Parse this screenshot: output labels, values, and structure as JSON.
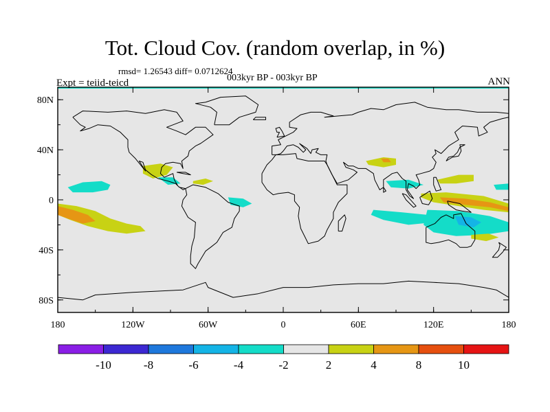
{
  "title": "Tot. Cloud Cov. (random overlap, in %)",
  "stats_line": "rmsd= 1.26543 diff= 0.0712624",
  "experiment_label": "Expt = teiid-teicd",
  "period_label": "003kyr BP - 003kyr BP",
  "season_label": "ANN",
  "colors": {
    "ocean_land_background": "#e6e6e6",
    "coastline": "#000000",
    "frame": "#000000"
  },
  "chart_data": {
    "type": "heatmap",
    "projection": "cylindrical-equidistant",
    "variable": "Total cloud cover difference (random overlap)",
    "units": "%",
    "xlim": [
      -180,
      180
    ],
    "ylim": [
      -90,
      90
    ],
    "x_ticks": [
      {
        "value": -180,
        "label": "180"
      },
      {
        "value": -120,
        "label": "120W"
      },
      {
        "value": -60,
        "label": "60W"
      },
      {
        "value": 0,
        "label": "0"
      },
      {
        "value": 60,
        "label": "60E"
      },
      {
        "value": 120,
        "label": "120E"
      },
      {
        "value": 180,
        "label": "180"
      }
    ],
    "y_ticks": [
      {
        "value": 80,
        "label": "80N"
      },
      {
        "value": 40,
        "label": "40N"
      },
      {
        "value": 0,
        "label": "0"
      },
      {
        "value": -40,
        "label": "40S"
      },
      {
        "value": -80,
        "label": "80S"
      }
    ],
    "colorbar": {
      "bins": [
        {
          "min": null,
          "max": -10,
          "color": "#8a1ee6"
        },
        {
          "min": -10,
          "max": -8,
          "color": "#3c28d2"
        },
        {
          "min": -8,
          "max": -6,
          "color": "#1e78dc"
        },
        {
          "min": -6,
          "max": -4,
          "color": "#14b4e6"
        },
        {
          "min": -4,
          "max": -2,
          "color": "#14dcc8"
        },
        {
          "min": -2,
          "max": 2,
          "color": "#e6e6e6"
        },
        {
          "min": 2,
          "max": 4,
          "color": "#c8d214"
        },
        {
          "min": 4,
          "max": 8,
          "color": "#e69614"
        },
        {
          "min": 8,
          "max": 10,
          "color": "#e6500f"
        },
        {
          "min": 10,
          "max": null,
          "color": "#e61414"
        }
      ],
      "tick_labels": [
        "-10",
        "-8",
        "-6",
        "-4",
        "-2",
        "2",
        "4",
        "8",
        "10"
      ]
    },
    "regions": [
      {
        "name": "central-pacific-positive",
        "level": "2 to 4",
        "color": "#c8d214",
        "points": [
          [
            -180,
            -3
          ],
          [
            -165,
            -5
          ],
          [
            -150,
            -9
          ],
          [
            -138,
            -15
          ],
          [
            -125,
            -19
          ],
          [
            -114,
            -21
          ],
          [
            -110,
            -25
          ],
          [
            -125,
            -27
          ],
          [
            -140,
            -25
          ],
          [
            -156,
            -21
          ],
          [
            -170,
            -16
          ],
          [
            -180,
            -12
          ]
        ]
      },
      {
        "name": "central-pacific-core",
        "level": "4 to 8",
        "color": "#e69614",
        "points": [
          [
            -180,
            -5
          ],
          [
            -168,
            -8
          ],
          [
            -156,
            -12
          ],
          [
            -150,
            -17
          ],
          [
            -160,
            -19
          ],
          [
            -172,
            -15
          ],
          [
            -180,
            -12
          ]
        ]
      },
      {
        "name": "east-pacific-negative",
        "level": "-4 to -2",
        "color": "#14dcc8",
        "points": [
          [
            -172,
            10
          ],
          [
            -160,
            14
          ],
          [
            -145,
            15
          ],
          [
            -138,
            12
          ],
          [
            -140,
            8
          ],
          [
            -152,
            6
          ],
          [
            -168,
            6
          ]
        ]
      },
      {
        "name": "gulf-of-mexico-positive",
        "level": "2 to 4",
        "color": "#c8d214",
        "points": [
          [
            -112,
            27
          ],
          [
            -98,
            29
          ],
          [
            -88,
            26
          ],
          [
            -93,
            20
          ],
          [
            -104,
            17
          ],
          [
            -112,
            21
          ]
        ]
      },
      {
        "name": "caribbean-negative",
        "level": "-4 to -2",
        "color": "#14dcc8",
        "points": [
          [
            -100,
            18
          ],
          [
            -88,
            18
          ],
          [
            -82,
            13
          ],
          [
            -92,
            12
          ]
        ]
      },
      {
        "name": "tropical-atlantic-west-positive",
        "level": "2 to 4",
        "color": "#c8d214",
        "points": [
          [
            -72,
            15
          ],
          [
            -62,
            17
          ],
          [
            -56,
            15
          ],
          [
            -64,
            12
          ],
          [
            -72,
            13
          ]
        ]
      },
      {
        "name": "equatorial-atlantic-negative",
        "level": "-4 to -2",
        "color": "#14dcc8",
        "points": [
          [
            -44,
            2
          ],
          [
            -32,
            1
          ],
          [
            -25,
            -3
          ],
          [
            -32,
            -6
          ],
          [
            -42,
            -4
          ]
        ]
      },
      {
        "name": "arabian-sea-positive",
        "level": "2 to 4",
        "color": "#c8d214",
        "points": [
          [
            66,
            31
          ],
          [
            80,
            34
          ],
          [
            90,
            33
          ],
          [
            90,
            28
          ],
          [
            80,
            26
          ],
          [
            68,
            28
          ]
        ]
      },
      {
        "name": "arabian-sea-core",
        "level": "4 to 8",
        "color": "#e69614",
        "points": [
          [
            78,
            33
          ],
          [
            84,
            33
          ],
          [
            86,
            30
          ],
          [
            80,
            30
          ]
        ]
      },
      {
        "name": "bay-of-bengal-negative",
        "level": "-4 to -2",
        "color": "#14dcc8",
        "points": [
          [
            82,
            15
          ],
          [
            100,
            16
          ],
          [
            112,
            12
          ],
          [
            100,
            9
          ],
          [
            86,
            10
          ]
        ]
      },
      {
        "name": "western-pacific-positive-north",
        "level": "2 to 4",
        "color": "#c8d214",
        "points": [
          [
            123,
            16
          ],
          [
            140,
            20
          ],
          [
            152,
            20
          ],
          [
            152,
            15
          ],
          [
            138,
            13
          ],
          [
            125,
            13
          ]
        ]
      },
      {
        "name": "maritime-continent-positive",
        "level": "2 to 4",
        "color": "#c8d214",
        "points": [
          [
            110,
            5
          ],
          [
            130,
            6
          ],
          [
            160,
            3
          ],
          [
            180,
            -3
          ],
          [
            180,
            -10
          ],
          [
            160,
            -8
          ],
          [
            140,
            -5
          ],
          [
            120,
            -2
          ],
          [
            110,
            2
          ]
        ]
      },
      {
        "name": "maritime-continent-core",
        "level": "4 to 8",
        "color": "#e69614",
        "points": [
          [
            125,
            2
          ],
          [
            145,
            1
          ],
          [
            165,
            -2
          ],
          [
            180,
            -6
          ],
          [
            180,
            -9
          ],
          [
            165,
            -6
          ],
          [
            145,
            -4
          ],
          [
            128,
            -2
          ]
        ]
      },
      {
        "name": "east-indian-ocean-negative",
        "level": "-4 to -2",
        "color": "#14dcc8",
        "points": [
          [
            72,
            -8
          ],
          [
            95,
            -10
          ],
          [
            115,
            -12
          ],
          [
            120,
            -18
          ],
          [
            100,
            -20
          ],
          [
            80,
            -16
          ],
          [
            70,
            -12
          ]
        ]
      },
      {
        "name": "australia-negative",
        "level": "-4 to -2",
        "color": "#14dcc8",
        "points": [
          [
            115,
            -8
          ],
          [
            140,
            -9
          ],
          [
            165,
            -13
          ],
          [
            180,
            -18
          ],
          [
            180,
            -25
          ],
          [
            160,
            -28
          ],
          [
            138,
            -29
          ],
          [
            120,
            -26
          ],
          [
            112,
            -20
          ]
        ]
      },
      {
        "name": "australia-core",
        "level": "-6 to -4",
        "color": "#14b4e6",
        "points": [
          [
            137,
            -13
          ],
          [
            150,
            -14
          ],
          [
            158,
            -18
          ],
          [
            152,
            -22
          ],
          [
            140,
            -20
          ]
        ]
      },
      {
        "name": "south-pacific-positive",
        "level": "2 to 4",
        "color": "#c8d214",
        "points": [
          [
            150,
            -28
          ],
          [
            164,
            -27
          ],
          [
            172,
            -30
          ],
          [
            162,
            -33
          ],
          [
            150,
            -31
          ]
        ]
      },
      {
        "name": "west-pacific-north-negative",
        "level": "-4 to -2",
        "color": "#14dcc8",
        "points": [
          [
            168,
            12
          ],
          [
            180,
            13
          ],
          [
            180,
            8
          ],
          [
            170,
            8
          ]
        ]
      }
    ]
  }
}
